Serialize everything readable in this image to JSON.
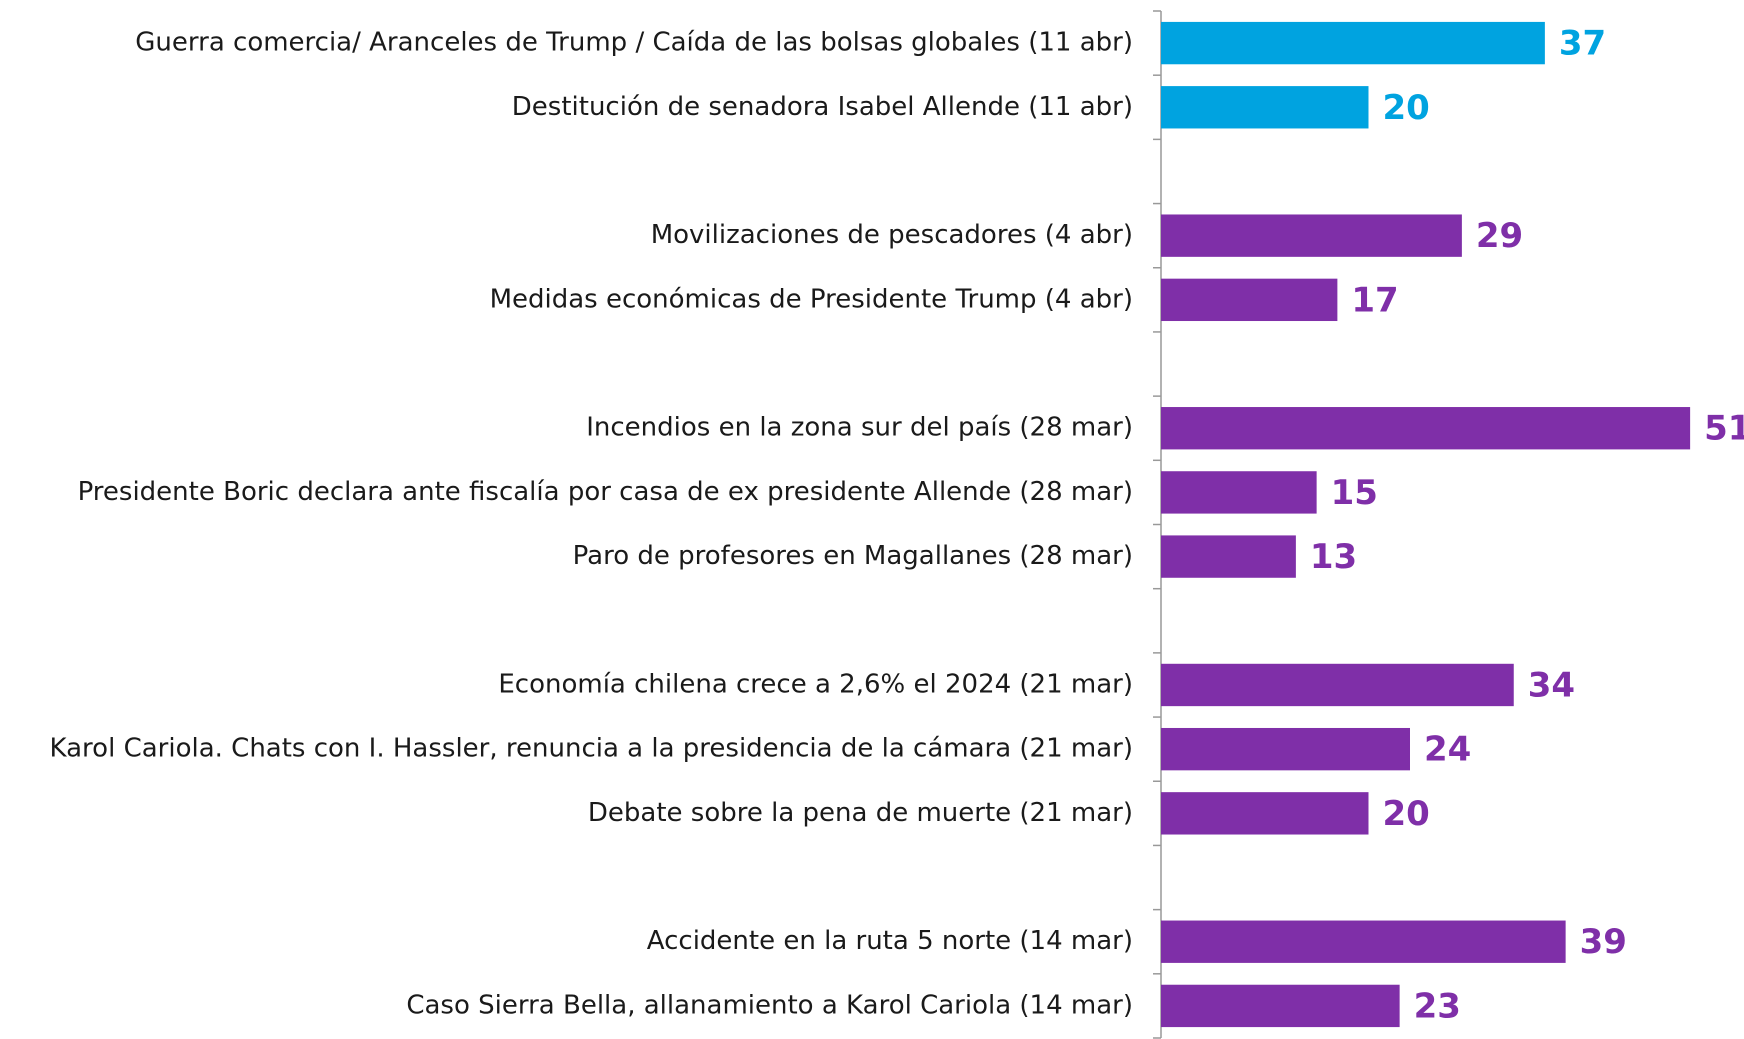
{
  "chart_data": {
    "type": "barh",
    "categories": [
      "Guerra comercia/ Aranceles de Trump / Caída de las bolsas globales (11 abr)",
      "Destitución de senadora Isabel Allende (11 abr)",
      null,
      "Movilizaciones de pescadores (4 abr)",
      "Medidas económicas de Presidente Trump (4 abr)",
      null,
      "Incendios en la zona sur del país (28 mar)",
      "Presidente Boric declara ante fiscalía por casa de ex presidente Allende (28 mar)",
      "Paro de profesores en Magallanes (28 mar)",
      null,
      "Economía chilena crece a 2,6% el 2024 (21 mar)",
      "Karol Cariola. Chats con I. Hassler, renuncia a la presidencia de la cámara (21 mar)",
      "Debate sobre la pena de muerte (21 mar)",
      null,
      "Accidente en la ruta 5 norte (14 mar)",
      "Caso Sierra Bella, allanamiento a Karol Cariola (14 mar)"
    ],
    "values": [
      37,
      20,
      null,
      29,
      17,
      null,
      51,
      15,
      13,
      null,
      34,
      24,
      20,
      null,
      39,
      23
    ],
    "colors": [
      "#00a3e0",
      "#00a3e0",
      null,
      "#7f2fa8",
      "#7f2fa8",
      null,
      "#7f2fa8",
      "#7f2fa8",
      "#7f2fa8",
      null,
      "#7f2fa8",
      "#7f2fa8",
      "#7f2fa8",
      null,
      "#7f2fa8",
      "#7f2fa8"
    ],
    "xlim": [
      0,
      56
    ]
  }
}
